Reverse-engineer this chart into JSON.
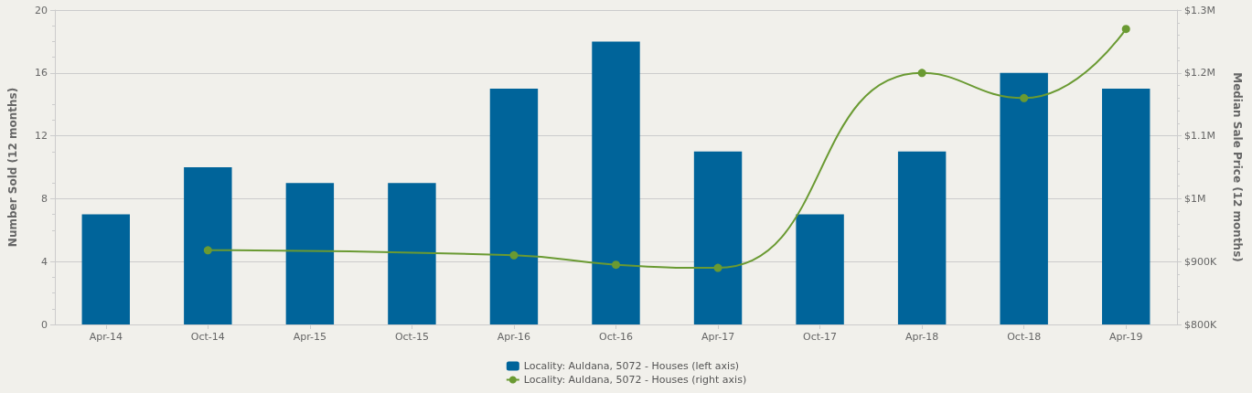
{
  "chart_data": {
    "type": "bar",
    "categories": [
      "Apr-14",
      "Oct-14",
      "Apr-15",
      "Oct-15",
      "Apr-16",
      "Oct-16",
      "Apr-17",
      "Oct-17",
      "Apr-18",
      "Oct-18",
      "Apr-19"
    ],
    "series": [
      {
        "name": "Locality: Auldana, 5072 - Houses (left axis)",
        "color": "#00649a",
        "values": [
          7,
          10,
          9,
          9,
          15,
          18,
          11,
          7,
          11,
          16,
          15
        ]
      },
      {
        "name": "Locality: Auldana, 5072 - Houses (right axis)",
        "type": "line",
        "axis": "y2",
        "color": "#6a9a32",
        "values": [
          null,
          918000,
          null,
          null,
          910000,
          895000,
          890000,
          null,
          1200000,
          1160000,
          1270000
        ]
      }
    ],
    "ylabel": "Number Sold (12 months)",
    "y2label": "Median Sale Price (12 months)",
    "ylim": [
      0,
      20
    ],
    "yticks": [
      0,
      4,
      8,
      12,
      16,
      20
    ],
    "y2lim": [
      800000,
      1300000
    ],
    "y2ticks": [
      {
        "value": 800000,
        "label": "$800K"
      },
      {
        "value": 900000,
        "label": "$900K"
      },
      {
        "value": 1000000,
        "label": "$1M"
      },
      {
        "value": 1100000,
        "label": "$1.1M"
      },
      {
        "value": 1200000,
        "label": "$1.2M"
      },
      {
        "value": 1300000,
        "label": "$1.3M"
      }
    ],
    "grid": "y",
    "legend": "bottom",
    "marker": "circle"
  }
}
